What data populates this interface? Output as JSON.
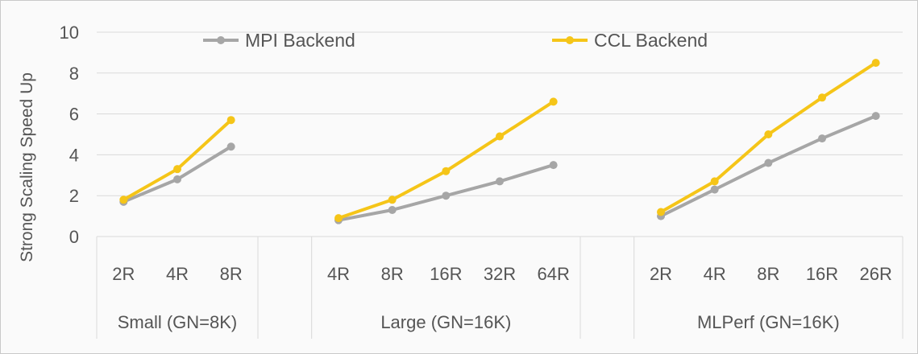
{
  "chart_data": {
    "type": "line",
    "ylabel": "Strong Scaling Speed Up",
    "ylim": [
      0,
      10
    ],
    "yticks": [
      0,
      2,
      4,
      6,
      8,
      10
    ],
    "grid": true,
    "legend_position": "top",
    "colors": {
      "MPI Backend": "#a6a6a6",
      "CCL Backend": "#f5c518"
    },
    "groups": [
      {
        "label": "Small (GN=8K)",
        "categories": [
          "2R",
          "4R",
          "8R"
        ],
        "series": [
          {
            "name": "MPI Backend",
            "values": [
              1.7,
              2.8,
              4.4
            ]
          },
          {
            "name": "CCL Backend",
            "values": [
              1.8,
              3.3,
              5.7
            ]
          }
        ]
      },
      {
        "label": "Large (GN=16K)",
        "categories": [
          "4R",
          "8R",
          "16R",
          "32R",
          "64R"
        ],
        "series": [
          {
            "name": "MPI Backend",
            "values": [
              0.8,
              1.3,
              2.0,
              2.7,
              3.5
            ]
          },
          {
            "name": "CCL Backend",
            "values": [
              0.9,
              1.8,
              3.2,
              4.9,
              6.6
            ]
          }
        ]
      },
      {
        "label": "MLPerf (GN=16K)",
        "categories": [
          "2R",
          "4R",
          "8R",
          "16R",
          "26R"
        ],
        "series": [
          {
            "name": "MPI Backend",
            "values": [
              1.0,
              2.3,
              3.6,
              4.8,
              5.9
            ]
          },
          {
            "name": "CCL Backend",
            "values": [
              1.2,
              2.7,
              5.0,
              6.8,
              8.5
            ]
          }
        ]
      }
    ]
  }
}
